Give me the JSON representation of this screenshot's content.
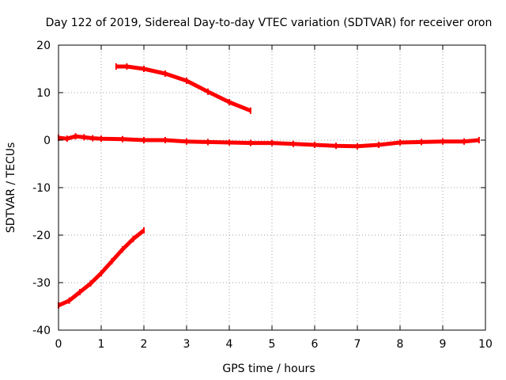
{
  "chart_data": {
    "type": "line",
    "title": "Day 122 of 2019, Sidereal Day-to-day VTEC variation (SDTVAR) for receiver oron",
    "xlabel": "GPS time / hours",
    "ylabel": "SDTVAR / TECUs",
    "xlim": [
      0,
      10
    ],
    "ylim": [
      -40,
      20
    ],
    "xticks": [
      "0",
      "1",
      "2",
      "3",
      "4",
      "5",
      "6",
      "7",
      "8",
      "9",
      "10"
    ],
    "yticks": [
      "20",
      "10",
      "0",
      "-10",
      "-20",
      "-30",
      "-40"
    ],
    "grid": true,
    "line_color": "#ff0000",
    "series": [
      {
        "x": [
          1.35,
          1.6,
          2.0,
          2.5,
          3.0,
          3.5,
          4.0,
          4.5
        ],
        "y": [
          15.5,
          15.5,
          15.0,
          14.0,
          12.5,
          10.2,
          8.0,
          6.2
        ]
      },
      {
        "x": [
          0,
          0.2,
          0.4,
          0.6,
          0.8,
          1.0,
          1.5,
          2.0,
          2.5,
          3.0,
          3.5,
          4.0,
          4.5,
          5.0,
          5.5,
          6.0,
          6.5,
          7.0,
          7.5,
          8.0,
          8.5,
          9.0,
          9.5,
          9.85
        ],
        "y": [
          0.5,
          0.3,
          0.8,
          0.6,
          0.4,
          0.3,
          0.2,
          0.0,
          0.0,
          -0.3,
          -0.4,
          -0.5,
          -0.6,
          -0.6,
          -0.8,
          -1.0,
          -1.2,
          -1.3,
          -1.0,
          -0.5,
          -0.4,
          -0.3,
          -0.3,
          0.0
        ]
      },
      {
        "x": [
          0,
          0.25,
          0.5,
          0.75,
          1.0,
          1.25,
          1.5,
          1.75,
          2.0
        ],
        "y": [
          -34.8,
          -33.8,
          -32.0,
          -30.2,
          -28.0,
          -25.5,
          -23.0,
          -20.8,
          -19.0
        ]
      }
    ]
  }
}
